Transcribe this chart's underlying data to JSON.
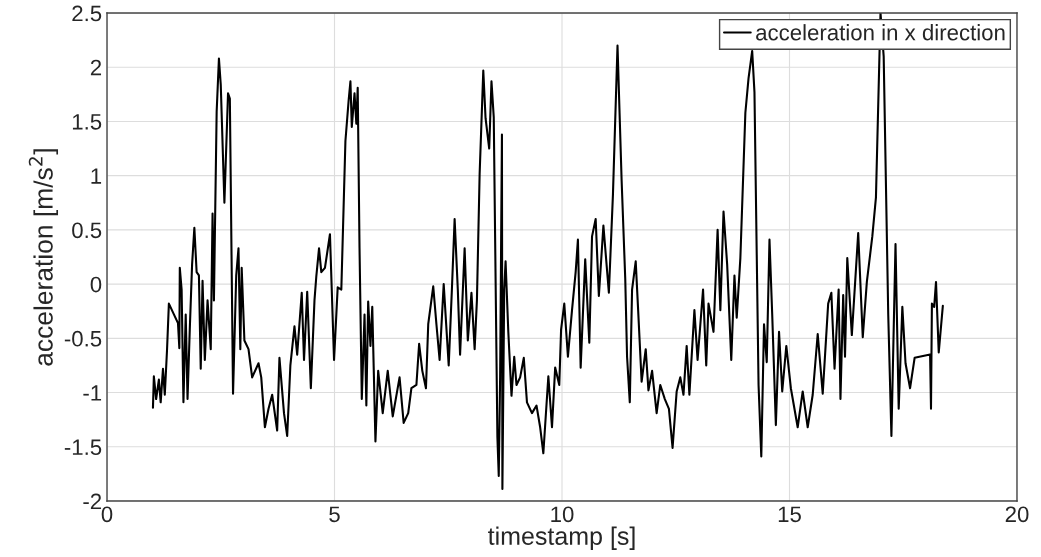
{
  "chart_data": {
    "type": "line",
    "xlabel": "timestamp [s]",
    "ylabel": "acceleration [m/s$^{2}$]",
    "xlim": [
      0,
      20
    ],
    "ylim": [
      -2,
      2.5
    ],
    "xticks": [
      0,
      5,
      10,
      15,
      20
    ],
    "yticks": [
      -2,
      -1.5,
      -1,
      -0.5,
      0,
      0.5,
      1,
      1.5,
      2,
      2.5
    ],
    "grid": true,
    "legend": "top right",
    "marker": "none",
    "line_style": "solid",
    "series": [
      {
        "name": "acceleration in x direction",
        "color": "#000000",
        "x": [
          1.01,
          1.03,
          1.08,
          1.14,
          1.18,
          1.23,
          1.27,
          1.32,
          1.36,
          1.56,
          1.59,
          1.6,
          1.64,
          1.68,
          1.73,
          1.77,
          1.82,
          1.87,
          1.92,
          1.97,
          2.02,
          2.06,
          2.1,
          2.15,
          2.21,
          2.28,
          2.32,
          2.35,
          2.41,
          2.46,
          2.5,
          2.58,
          2.66,
          2.7,
          2.77,
          2.84,
          2.89,
          2.93,
          2.96,
          3.02,
          3.11,
          3.19,
          3.33,
          3.39,
          3.47,
          3.55,
          3.63,
          3.74,
          3.79,
          3.89,
          3.96,
          4.03,
          4.12,
          4.18,
          4.28,
          4.33,
          4.4,
          4.48,
          4.56,
          4.6,
          4.66,
          4.71,
          4.79,
          4.9,
          4.99,
          5.07,
          5.15,
          5.24,
          5.31,
          5.35,
          5.38,
          5.44,
          5.48,
          5.51,
          5.55,
          5.6,
          5.66,
          5.7,
          5.74,
          5.79,
          5.83,
          5.9,
          5.96,
          6.06,
          6.17,
          6.28,
          6.43,
          6.52,
          6.62,
          6.69,
          6.8,
          6.86,
          6.93,
          7.01,
          7.06,
          7.17,
          7.24,
          7.31,
          7.4,
          7.51,
          7.58,
          7.64,
          7.71,
          7.76,
          7.86,
          7.93,
          8.01,
          8.08,
          8.13,
          8.19,
          8.27,
          8.32,
          8.4,
          8.45,
          8.5,
          8.58,
          8.61,
          8.64,
          8.68,
          8.69,
          8.73,
          8.76,
          8.82,
          8.89,
          8.95,
          9.0,
          9.08,
          9.16,
          9.23,
          9.34,
          9.44,
          9.52,
          9.59,
          9.7,
          9.78,
          9.85,
          9.94,
          9.98,
          10.05,
          10.13,
          10.22,
          10.3,
          10.35,
          10.41,
          10.51,
          10.6,
          10.66,
          10.74,
          10.81,
          10.91,
          11.03,
          11.12,
          11.22,
          11.31,
          11.39,
          11.43,
          11.49,
          11.54,
          11.62,
          11.67,
          11.75,
          11.84,
          11.9,
          11.98,
          12.08,
          12.16,
          12.26,
          12.35,
          12.43,
          12.52,
          12.6,
          12.67,
          12.74,
          12.8,
          12.91,
          12.98,
          13.1,
          13.17,
          13.22,
          13.33,
          13.42,
          13.48,
          13.55,
          13.63,
          13.72,
          13.79,
          13.84,
          13.92,
          14.03,
          14.1,
          14.18,
          14.23,
          14.32,
          14.38,
          14.44,
          14.5,
          14.56,
          14.62,
          14.7,
          14.77,
          14.84,
          14.93,
          15.03,
          15.18,
          15.29,
          15.4,
          15.51,
          15.62,
          15.73,
          15.85,
          15.92,
          15.99,
          16.08,
          16.12,
          16.18,
          16.22,
          16.27,
          16.37,
          16.51,
          16.61,
          16.7,
          16.82,
          16.9,
          17.0,
          17.07,
          17.17,
          17.24,
          17.33,
          17.4,
          17.48,
          17.55,
          17.65,
          17.75,
          18.09,
          18.11,
          18.13,
          18.18,
          18.22,
          18.28,
          18.37
        ],
        "values": [
          -1.14,
          -0.85,
          -1.06,
          -0.88,
          -1.09,
          -0.78,
          -1.02,
          -0.6,
          -0.18,
          -0.36,
          -0.59,
          0.15,
          -0.05,
          -1.09,
          -0.28,
          -1.06,
          -0.41,
          0.18,
          0.52,
          0.11,
          0.08,
          -0.78,
          0.03,
          -0.7,
          -0.15,
          -0.6,
          0.65,
          -0.15,
          1.59,
          2.08,
          1.84,
          0.75,
          1.76,
          1.71,
          -1.01,
          0.08,
          0.33,
          -0.6,
          0.15,
          -0.52,
          -0.6,
          -0.86,
          -0.73,
          -0.86,
          -1.32,
          -1.15,
          -1.02,
          -1.35,
          -0.68,
          -1.19,
          -1.4,
          -0.75,
          -0.39,
          -0.65,
          -0.08,
          -0.7,
          -0.07,
          -0.96,
          -0.15,
          0.07,
          0.33,
          0.11,
          0.15,
          0.46,
          -0.7,
          -0.03,
          -0.05,
          1.32,
          1.69,
          1.87,
          1.45,
          1.76,
          1.48,
          1.81,
          0.33,
          -1.06,
          -0.28,
          -1.12,
          -0.16,
          -0.57,
          -0.21,
          -1.45,
          -0.8,
          -1.19,
          -0.8,
          -1.22,
          -0.86,
          -1.28,
          -1.19,
          -0.96,
          -0.93,
          -0.55,
          -0.8,
          -0.96,
          -0.37,
          -0.02,
          -0.37,
          -0.7,
          0.0,
          -0.75,
          -0.05,
          0.6,
          -0.05,
          -0.65,
          0.33,
          -0.52,
          -0.08,
          -0.6,
          -0.15,
          1.02,
          1.97,
          1.53,
          1.25,
          1.87,
          1.54,
          -1.41,
          -1.77,
          -0.86,
          1.38,
          -1.89,
          -0.05,
          0.21,
          -0.44,
          -1.03,
          -0.67,
          -0.93,
          -0.86,
          -0.68,
          -1.09,
          -1.19,
          -1.12,
          -1.32,
          -1.56,
          -0.85,
          -1.32,
          -0.77,
          -0.93,
          -0.42,
          -0.18,
          -0.67,
          -0.24,
          0.11,
          0.41,
          -0.77,
          0.23,
          -0.54,
          0.44,
          0.6,
          -0.11,
          0.54,
          -0.08,
          0.83,
          2.2,
          0.96,
          0.05,
          -0.67,
          -1.09,
          -0.05,
          0.21,
          -0.21,
          -0.9,
          -0.6,
          -0.98,
          -0.8,
          -1.19,
          -0.93,
          -1.06,
          -1.15,
          -1.51,
          -0.99,
          -0.86,
          -1.02,
          -0.57,
          -1.02,
          -0.24,
          -0.7,
          -0.05,
          -0.75,
          -0.18,
          -0.44,
          0.5,
          -0.24,
          0.67,
          0.18,
          -0.7,
          0.08,
          -0.31,
          0.24,
          1.58,
          1.9,
          2.15,
          1.77,
          -0.93,
          -1.59,
          -0.37,
          -0.72,
          0.41,
          -0.28,
          -1.3,
          -0.44,
          -0.99,
          -0.57,
          -0.96,
          -1.32,
          -0.99,
          -1.32,
          -1.02,
          -0.46,
          -1.01,
          -0.18,
          -0.08,
          -0.78,
          -0.05,
          -1.06,
          -0.1,
          -0.67,
          0.24,
          -0.47,
          0.47,
          -0.49,
          0.02,
          0.44,
          0.8,
          2.5,
          2.1,
          -0.28,
          -1.4,
          0.37,
          -1.15,
          -0.21,
          -0.73,
          -0.96,
          -0.68,
          -0.65,
          -1.15,
          -0.18,
          -0.21,
          0.02,
          -0.63,
          -0.2
        ]
      }
    ]
  }
}
